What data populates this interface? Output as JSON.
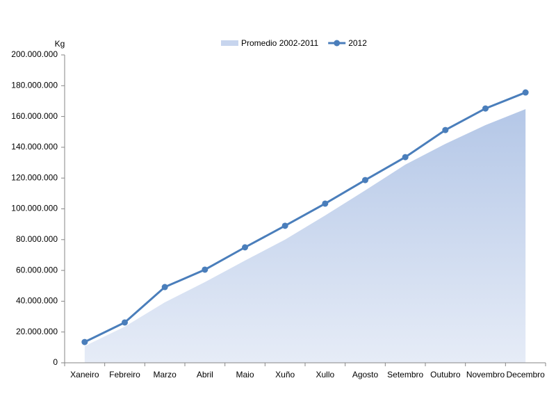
{
  "chart_data": {
    "type": "area-line",
    "y_label": "Kg",
    "categories": [
      "Xaneiro",
      "Febreiro",
      "Marzo",
      "Abril",
      "Maio",
      "Xuño",
      "Xullo",
      "Agosto",
      "Setembro",
      "Outubro",
      "Novembro",
      "Decembro"
    ],
    "series": [
      {
        "name": "Promedio 2002-2011",
        "kind": "area",
        "color": "#b4c7e7",
        "values": [
          10800000,
          23500000,
          39300000,
          52400000,
          66400000,
          80000000,
          95700000,
          112000000,
          128700000,
          142200000,
          154400000,
          164800000
        ]
      },
      {
        "name": "2012",
        "kind": "line",
        "color": "#4a7ebb",
        "values": [
          13500000,
          26200000,
          49200000,
          60500000,
          75000000,
          89000000,
          103400000,
          118700000,
          133600000,
          151200000,
          165200000,
          175600000
        ]
      }
    ],
    "ylim": [
      0,
      200000000
    ],
    "yticks": [
      0,
      {
        "value": 20000000,
        "label": "20.000.000"
      },
      {
        "value": 40000000,
        "label": "40.000.000"
      },
      {
        "value": 60000000,
        "label": "60.000.000"
      },
      {
        "value": 80000000,
        "label": "80.000.000"
      },
      {
        "value": 100000000,
        "label": "100.000.000"
      },
      {
        "value": 120000000,
        "label": "120.000.000"
      },
      {
        "value": 140000000,
        "label": "140.000.000"
      },
      {
        "value": 160000000,
        "label": "160.000.000"
      },
      {
        "value": 180000000,
        "label": "180.000.000"
      },
      {
        "value": 200000000,
        "label": "200.000.000"
      }
    ],
    "legend": "top"
  }
}
